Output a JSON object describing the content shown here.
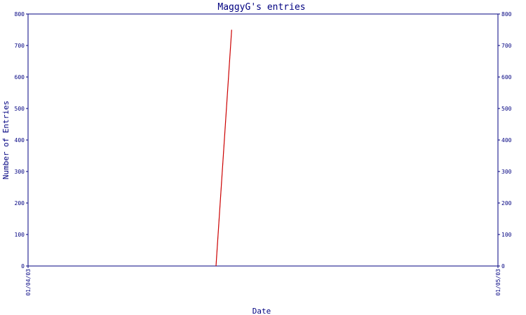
{
  "chart_data": {
    "type": "line",
    "title": "MaggyG's entries",
    "xlabel": "Date",
    "ylabel": "Number of Entries",
    "x_tick_labels": [
      "01/04/03",
      "01/05/03"
    ],
    "ylim": [
      0,
      800
    ],
    "y_ticks": [
      0,
      100,
      200,
      300,
      400,
      500,
      600,
      700,
      800
    ],
    "y_tick_labels": [
      "0",
      "100",
      "200",
      "300",
      "400",
      "500",
      "600",
      "700",
      "800"
    ],
    "right_axis_ticks": true,
    "grid": false,
    "series": [
      {
        "color": "#cc0000",
        "x": [
          "2003-04-13",
          "2003-04-14"
        ],
        "values": [
          0,
          750
        ]
      }
    ]
  }
}
